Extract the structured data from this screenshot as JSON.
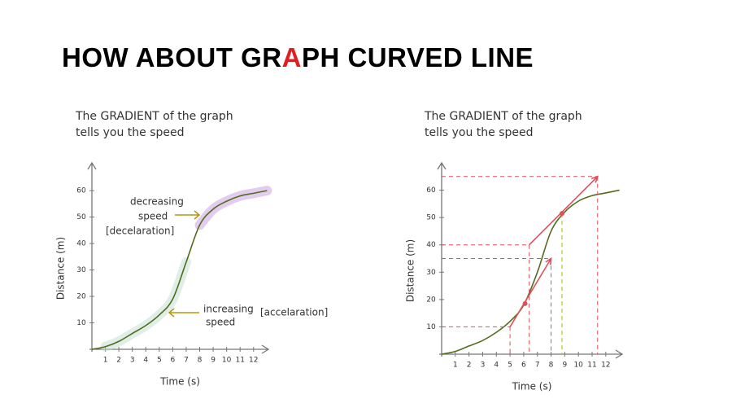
{
  "title_parts": [
    "HOW ABOUT GR",
    "A",
    "PH CURVED LINE"
  ],
  "chart_data": [
    {
      "type": "line",
      "subtitle_lines": [
        "The GRADIENT of the graph",
        "tells you the speed"
      ],
      "x_label": "Time (s)",
      "y_label": "Distance (m)",
      "xlim": [
        0,
        13.1
      ],
      "ylim": [
        0,
        70.5
      ],
      "xticks": [
        1,
        2,
        3,
        4,
        5,
        6,
        7,
        8,
        9,
        10,
        11,
        12
      ],
      "yticks": [
        10,
        20,
        30,
        40,
        50,
        60
      ],
      "x": [
        0,
        1,
        2,
        3,
        4,
        5,
        6,
        7,
        8,
        9,
        10,
        11,
        12,
        13
      ],
      "series": [
        {
          "color": "#556b1f",
          "values": [
            0,
            1,
            3,
            6,
            9,
            13,
            19,
            33,
            47,
            53,
            56,
            58,
            59,
            60
          ]
        }
      ],
      "annotations": [
        {
          "lines": [
            "decreasing",
            "speed",
            "[decelaration]"
          ],
          "color": "#b8960c"
        },
        {
          "lines": [
            "increasing",
            "speed",
            "[accelaration]"
          ],
          "color": "#b8960c"
        }
      ]
    },
    {
      "type": "line",
      "subtitle_lines": [
        "The GRADIENT of the graph",
        "tells you the speed"
      ],
      "x_label": "Time (s)",
      "y_label": "Distance (m)",
      "xlim": [
        0,
        13.2
      ],
      "ylim": [
        0,
        70
      ],
      "xticks": [
        1,
        2,
        3,
        4,
        5,
        6,
        7,
        8,
        9,
        10,
        11,
        12
      ],
      "yticks": [
        10,
        20,
        30,
        40,
        50,
        60
      ],
      "x": [
        0,
        1,
        2,
        3,
        4,
        5,
        6,
        7,
        8,
        9,
        10,
        11,
        12,
        13
      ],
      "series": [
        {
          "color": "#556b1f",
          "values": [
            0,
            1,
            3,
            5,
            8,
            12,
            18,
            30,
            45,
            52,
            56,
            58,
            59,
            60
          ]
        }
      ],
      "tangents": [
        {
          "x": [
            5,
            8
          ],
          "y": [
            10,
            35
          ],
          "color": "#e0505a"
        },
        {
          "x": [
            6.4,
            11.4
          ],
          "y": [
            40,
            65
          ],
          "color": "#e0505a"
        }
      ],
      "points": [
        {
          "x": 6.1,
          "y": 18.5,
          "color": "#e0505a"
        },
        {
          "x": 8.8,
          "y": 51.5,
          "color": "#e0505a"
        }
      ]
    }
  ]
}
